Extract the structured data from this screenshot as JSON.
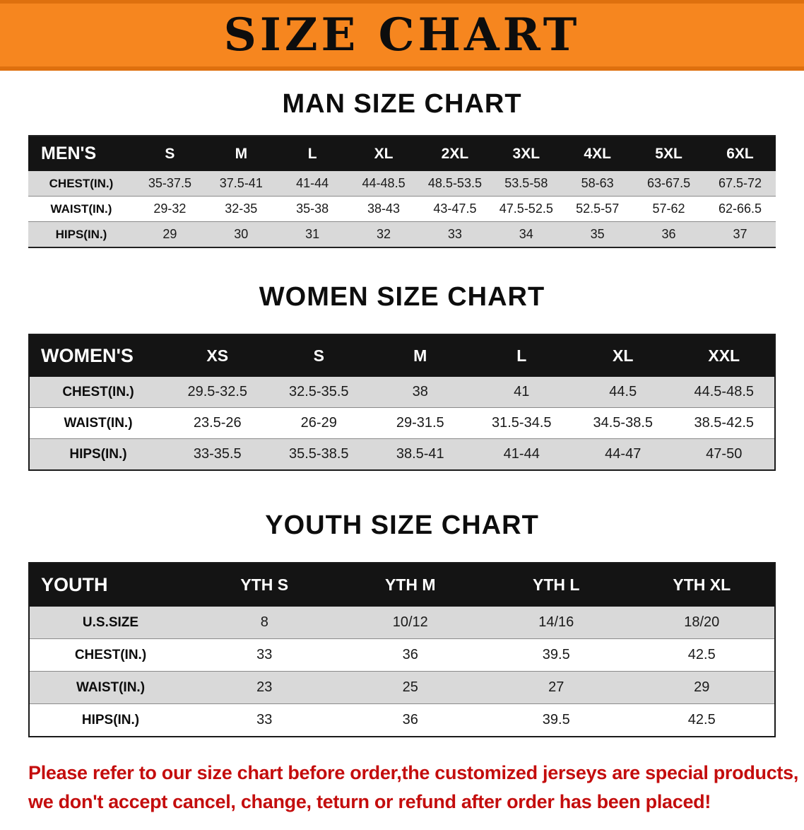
{
  "banner": {
    "title": "SIZE CHART"
  },
  "colors": {
    "banner_bg": "#F6861F",
    "table_header_bg": "#141414",
    "stripe_row_bg": "#d9d9d9",
    "disclaimer_text": "#c40d0d"
  },
  "chart_data": [
    {
      "type": "table",
      "title": "MAN SIZE CHART",
      "corner_label": "MEN'S",
      "columns": [
        "S",
        "M",
        "L",
        "XL",
        "2XL",
        "3XL",
        "4XL",
        "5XL",
        "6XL"
      ],
      "rows": [
        {
          "label": "CHEST(IN.)",
          "values": [
            "35-37.5",
            "37.5-41",
            "41-44",
            "44-48.5",
            "48.5-53.5",
            "53.5-58",
            "58-63",
            "63-67.5",
            "67.5-72"
          ]
        },
        {
          "label": "WAIST(IN.)",
          "values": [
            "29-32",
            "32-35",
            "35-38",
            "38-43",
            "43-47.5",
            "47.5-52.5",
            "52.5-57",
            "57-62",
            "62-66.5"
          ]
        },
        {
          "label": "HIPS(IN.)",
          "values": [
            "29",
            "30",
            "31",
            "32",
            "33",
            "34",
            "35",
            "36",
            "37"
          ]
        }
      ]
    },
    {
      "type": "table",
      "title": "WOMEN SIZE CHART",
      "corner_label": "WOMEN'S",
      "columns": [
        "XS",
        "S",
        "M",
        "L",
        "XL",
        "XXL"
      ],
      "rows": [
        {
          "label": "CHEST(IN.)",
          "values": [
            "29.5-32.5",
            "32.5-35.5",
            "38",
            "41",
            "44.5",
            "44.5-48.5"
          ]
        },
        {
          "label": "WAIST(IN.)",
          "values": [
            "23.5-26",
            "26-29",
            "29-31.5",
            "31.5-34.5",
            "34.5-38.5",
            "38.5-42.5"
          ]
        },
        {
          "label": "HIPS(IN.)",
          "values": [
            "33-35.5",
            "35.5-38.5",
            "38.5-41",
            "41-44",
            "44-47",
            "47-50"
          ]
        }
      ]
    },
    {
      "type": "table",
      "title": "YOUTH SIZE CHART",
      "corner_label": "YOUTH",
      "columns": [
        "YTH S",
        "YTH M",
        "YTH L",
        "YTH XL"
      ],
      "rows": [
        {
          "label": "U.S.SIZE",
          "values": [
            "8",
            "10/12",
            "14/16",
            "18/20"
          ]
        },
        {
          "label": "CHEST(IN.)",
          "values": [
            "33",
            "36",
            "39.5",
            "42.5"
          ]
        },
        {
          "label": "WAIST(IN.)",
          "values": [
            "23",
            "25",
            "27",
            "29"
          ]
        },
        {
          "label": "HIPS(IN.)",
          "values": [
            "33",
            "36",
            "39.5",
            "42.5"
          ]
        }
      ]
    }
  ],
  "footer": {
    "line1": "Please refer to our size chart before order,the customized jerseys are special products,",
    "line2": "we don't accept cancel, change, teturn or refund after order has been placed!"
  }
}
